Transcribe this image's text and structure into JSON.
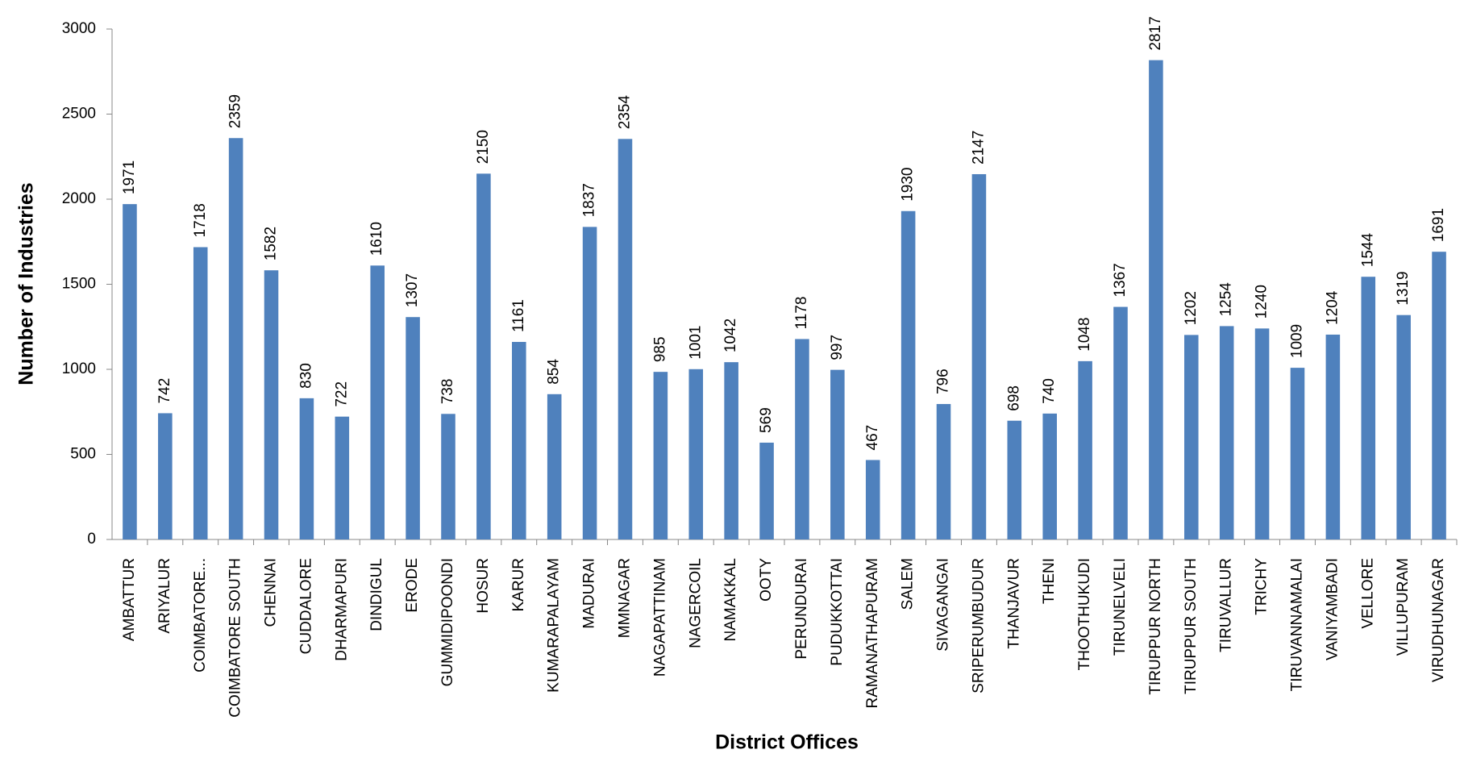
{
  "chart_data": {
    "type": "bar",
    "x_label": "District Offices",
    "y_label": "Number of Industries",
    "categories": [
      "AMBATTUR",
      "ARIYALUR",
      "COIMBATORE...",
      "COIMBATORE SOUTH",
      "CHENNAI",
      "CUDDALORE",
      "DHARMAPURI",
      "DINDIGUL",
      "ERODE",
      "GUMMIDIPOONDI",
      "HOSUR",
      "KARUR",
      "KUMARAPALAYAM",
      "MADURAI",
      "MMNAGAR",
      "NAGAPATTINAM",
      "NAGERCOIL",
      "NAMAKKAL",
      "OOTY",
      "PERUNDURAI",
      "PUDUKKOTTAI",
      "RAMANATHAPURAM",
      "SALEM",
      "SIVAGANGAI",
      "SRIPERUMBUDUR",
      "THANJAVUR",
      "THENI",
      "THOOTHUKUDI",
      "TIRUNELVELI",
      "TIRUPPUR NORTH",
      "TIRUPPUR SOUTH",
      "TIRUVALLUR",
      "TRICHY",
      "TIRUVANNAMALAI",
      "VANIYAMBADI",
      "VELLORE",
      "VILLUPURAM",
      "VIRUDHUNAGAR"
    ],
    "values": [
      1971,
      742,
      1718,
      2359,
      1582,
      830,
      722,
      1610,
      1307,
      738,
      2150,
      1161,
      854,
      1837,
      2354,
      985,
      1001,
      1042,
      569,
      1178,
      997,
      467,
      1930,
      796,
      2147,
      698,
      740,
      1048,
      1367,
      2817,
      1202,
      1254,
      1240,
      1009,
      1204,
      1544,
      1319,
      1691
    ],
    "color": "#4f81bd",
    "ylim": [
      0,
      3000
    ],
    "yticks": [
      0,
      500,
      1000,
      1500,
      2000,
      2500,
      3000
    ],
    "grid": false
  }
}
